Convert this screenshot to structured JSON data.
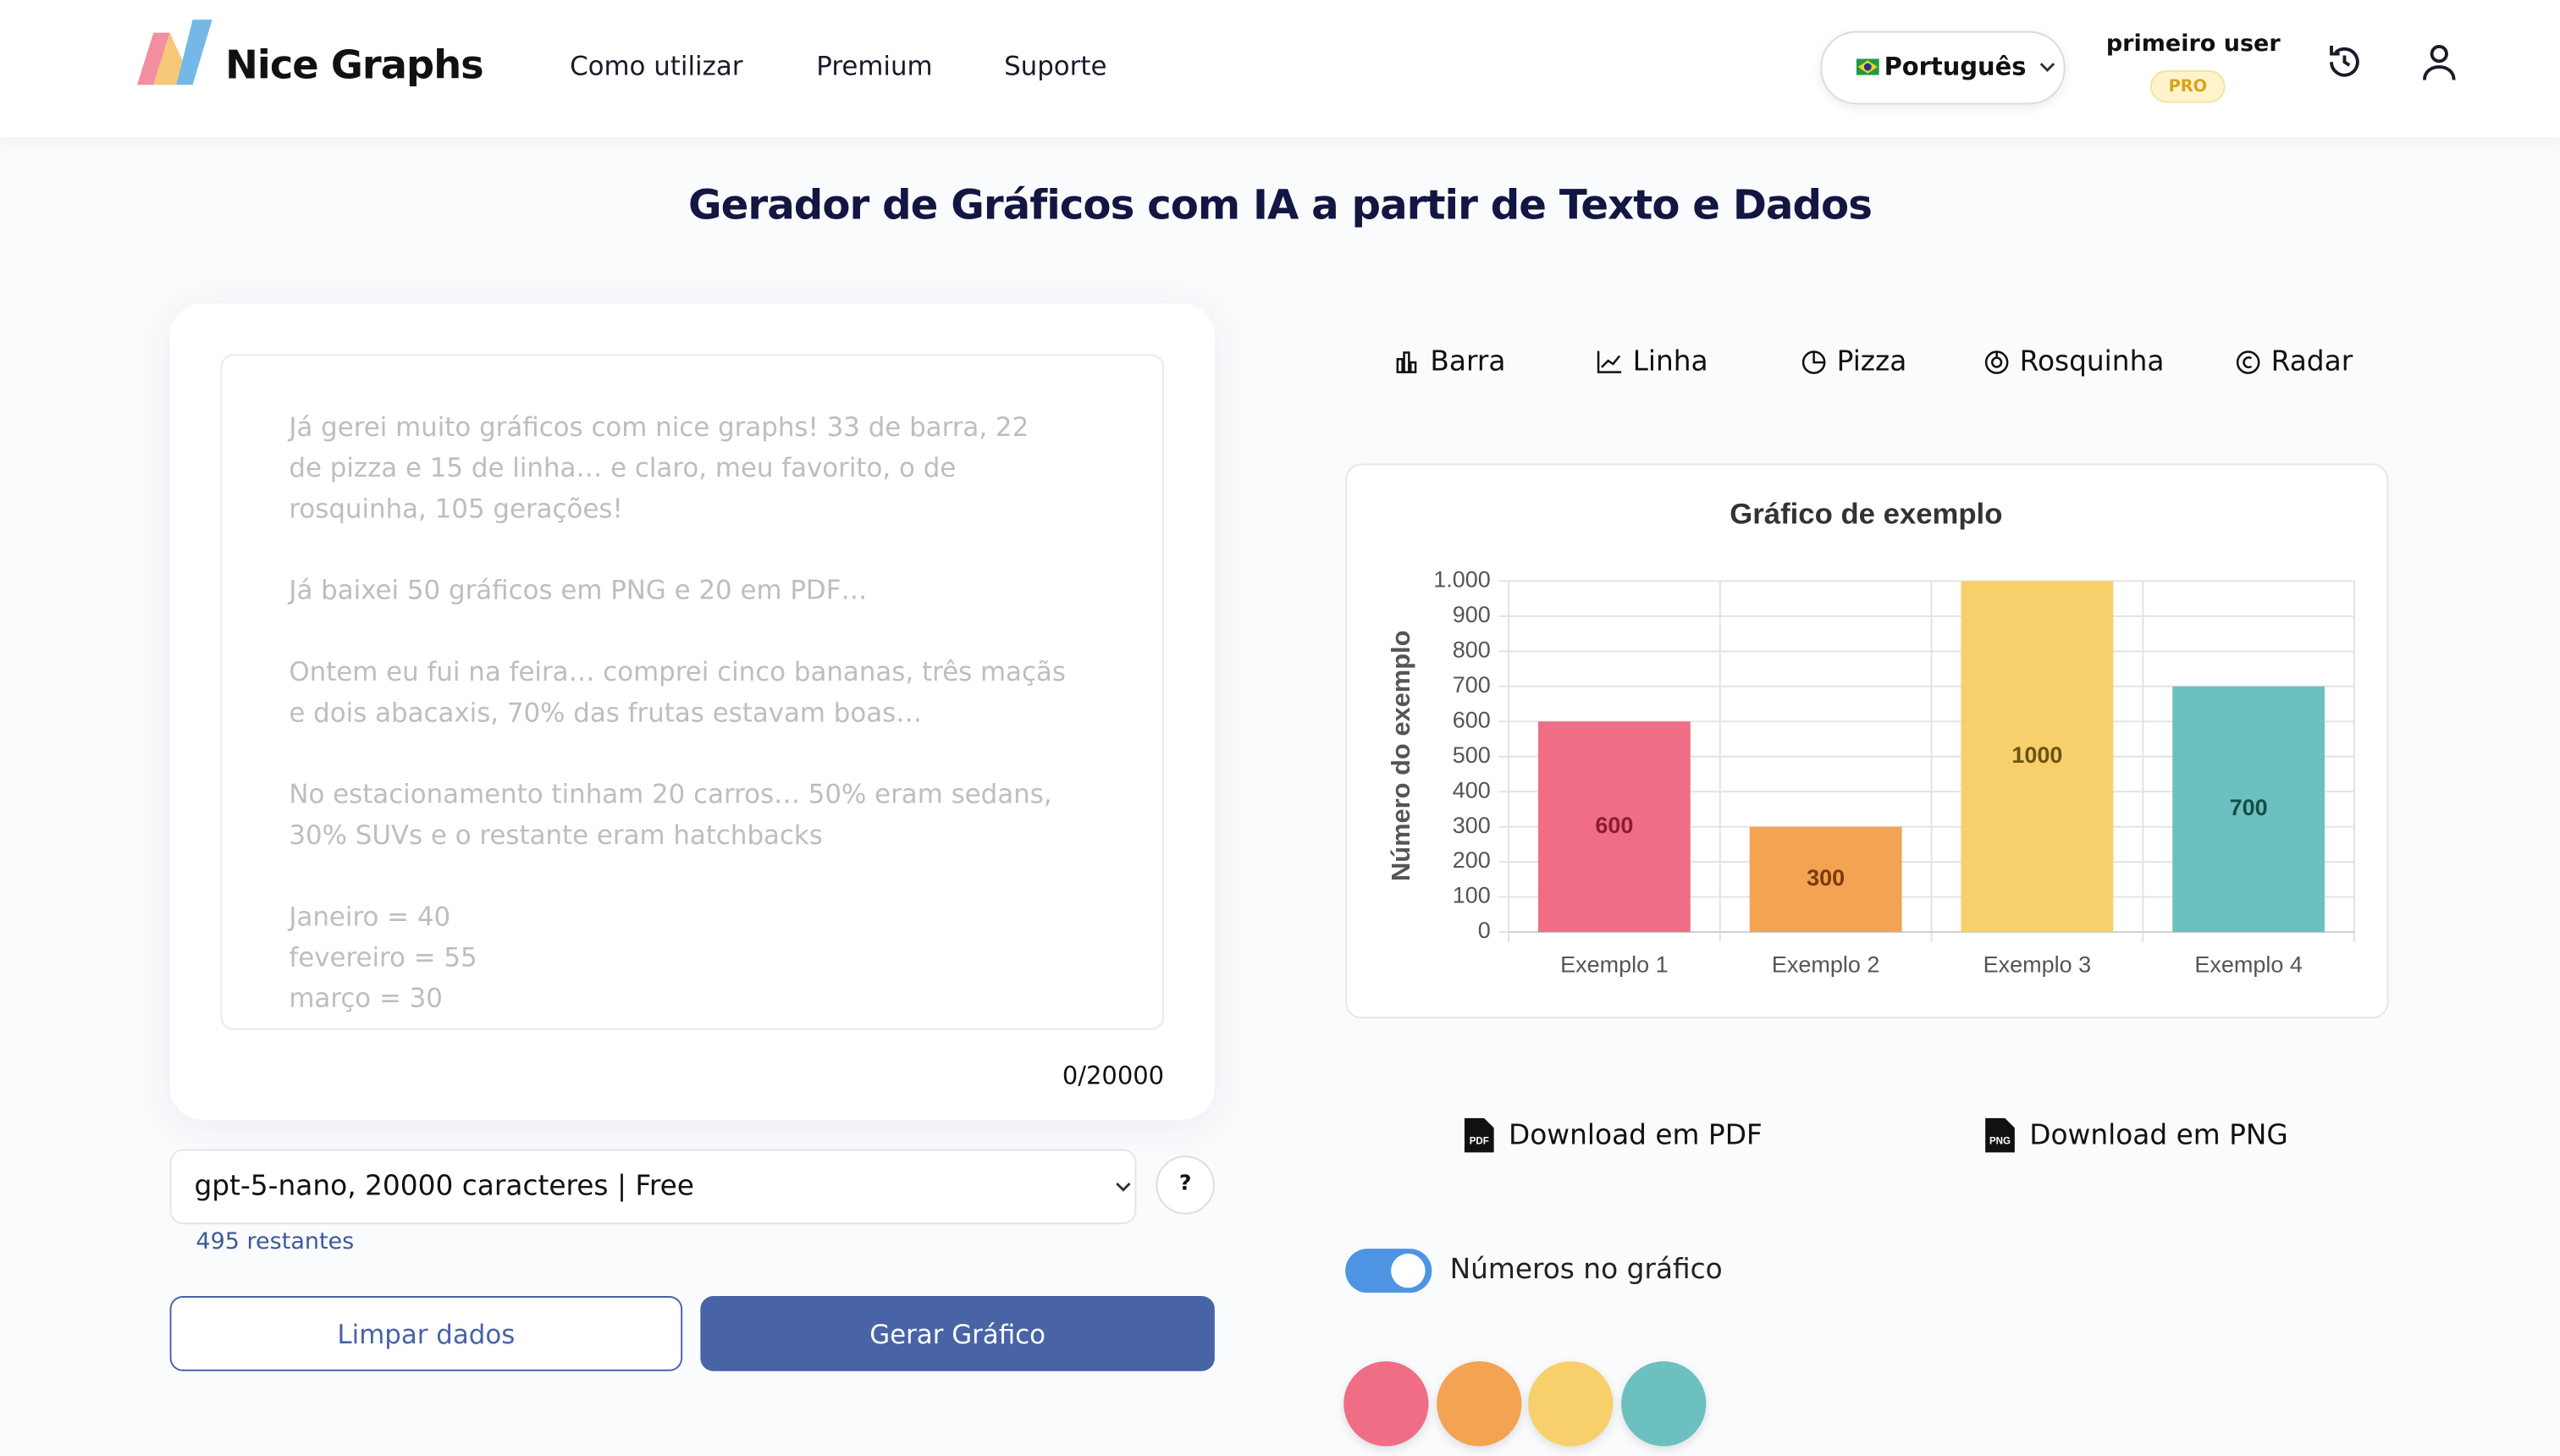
{
  "header": {
    "brand": "Nice Graphs",
    "nav": [
      "Como utilizar",
      "Premium",
      "Suporte"
    ],
    "language": "Português",
    "user_name": "primeiro user",
    "badge": "PRO"
  },
  "title": "Gerador de Gráficos com IA a partir de Texto e Dados",
  "input": {
    "placeholder_paragraphs": [
      [
        "Já gerei muito gráficos com nice graphs! 33 de barra, 22",
        "de pizza e 15 de linha… e claro, meu favorito, o de",
        "rosquinha, 105 gerações!"
      ],
      [
        "Já baixei 50 gráficos em PNG e 20 em PDF…"
      ],
      [
        "Ontem eu fui na feira… comprei cinco bananas, três maçãs",
        "e dois abacaxis, 70% das frutas estavam boas…"
      ],
      [
        "No estacionamento tinham 20 carros… 50% eram sedans,",
        "30% SUVs e o restante eram hatchbacks"
      ],
      [
        "Janeiro = 40",
        "fevereiro = 55",
        "março = 30"
      ]
    ],
    "counter": "0/20000",
    "model": "gpt-5-nano, 20000 caracteres | Free",
    "help": "?",
    "remaining": "495 restantes",
    "clear_button": "Limpar dados",
    "generate_button": "Gerar Gráfico"
  },
  "chart_tabs": [
    "Barra",
    "Linha",
    "Pizza",
    "Rosquinha",
    "Radar"
  ],
  "chart_data": {
    "type": "bar",
    "title": "Gráfico de exemplo",
    "y_label": "Número do exemplo",
    "categories": [
      "Exemplo 1",
      "Exemplo 2",
      "Exemplo 3",
      "Exemplo 4"
    ],
    "values": [
      600,
      300,
      1000,
      700
    ],
    "colors": [
      "#ef6e86",
      "#f3a352",
      "#f7d06b",
      "#6dc0c0"
    ],
    "ylim": [
      0,
      1000
    ],
    "yticks": [
      0,
      100,
      200,
      300,
      400,
      500,
      600,
      700,
      800,
      900,
      {
        "value": 1000,
        "label": "1.000"
      }
    ],
    "grid": true,
    "data_labels": true
  },
  "downloads": [
    "Download em PDF",
    "Download em PNG"
  ],
  "toggle_label": "Números no gráfico"
}
